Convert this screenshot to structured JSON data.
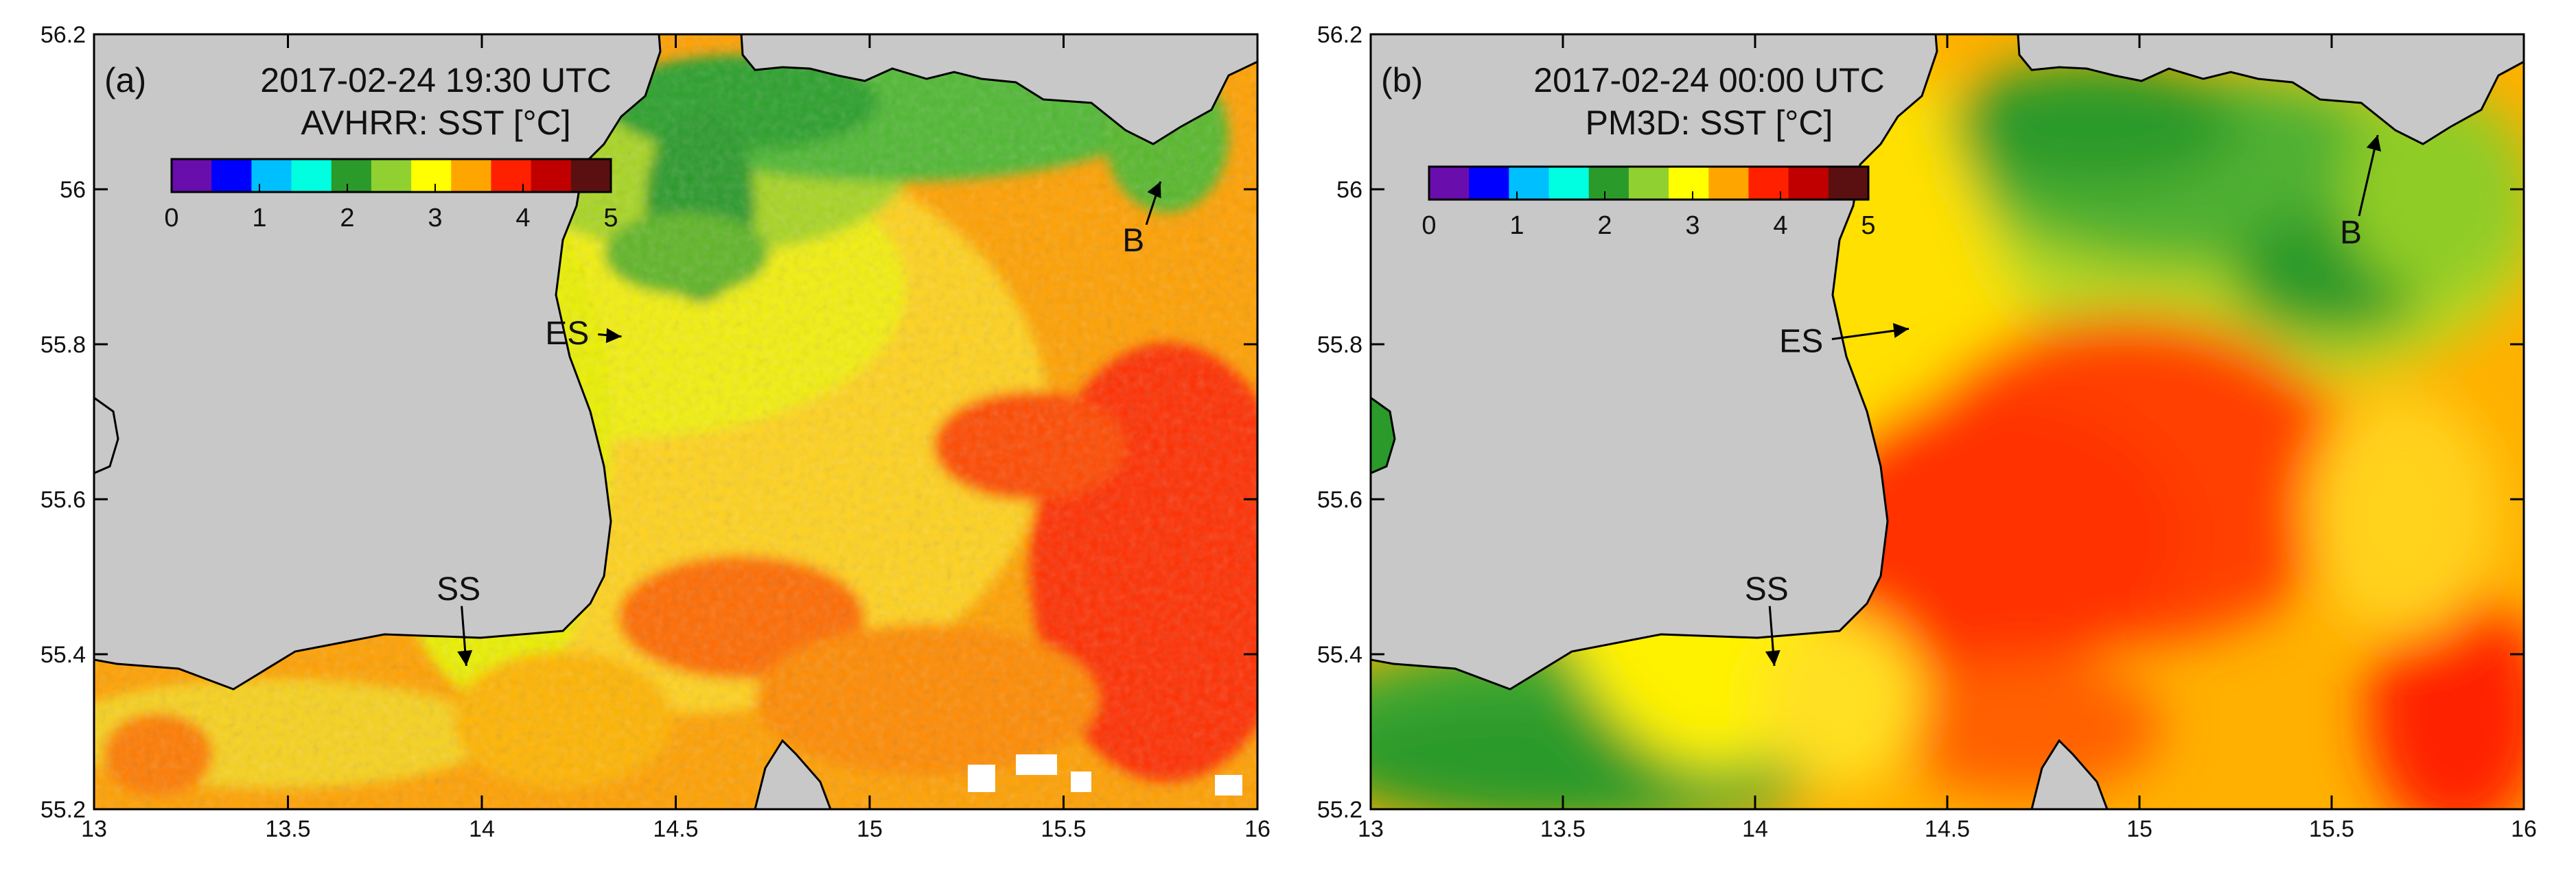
{
  "axes": {
    "x_ticks": [
      13,
      13.5,
      14,
      14.5,
      15,
      15.5,
      16
    ],
    "x_tick_labels": [
      "13",
      "13.5",
      "14",
      "14.5",
      "15",
      "15.5",
      "16"
    ],
    "y_ticks": [
      55.2,
      55.4,
      55.6,
      55.8,
      56,
      56.2
    ],
    "y_tick_labels": [
      "55.2",
      "55.4",
      "55.6",
      "55.8",
      "56",
      "56.2"
    ],
    "xlim": [
      13,
      16
    ],
    "ylim": [
      55.2,
      56.2
    ]
  },
  "colorbar": {
    "ticks": [
      "0",
      "1",
      "2",
      "3",
      "4",
      "5"
    ],
    "range": [
      0,
      5
    ],
    "colors": [
      "#6a0dad",
      "#0000ff",
      "#00bfff",
      "#00ffe0",
      "#2a9a2a",
      "#90d030",
      "#ffff00",
      "#ffa500",
      "#ff2000",
      "#c00000",
      "#5a1010"
    ]
  },
  "colors": {
    "land": "#c8c8c8",
    "coast": "#000000",
    "nodata": "#ffffff"
  },
  "panels": [
    {
      "id": "a",
      "label": "(a)",
      "datetime": "2017-02-24 19:30 UTC",
      "source": "AVHRR: SST [°C]",
      "markers": [
        {
          "text": "ES",
          "lon": 14.22,
          "lat": 55.8,
          "arrow_to": [
            14.36,
            55.81
          ]
        },
        {
          "text": "SS",
          "lon": 13.94,
          "lat": 55.47,
          "arrow_to": [
            13.96,
            55.385
          ]
        },
        {
          "text": "B",
          "lon": 15.68,
          "lat": 55.92,
          "arrow_to": [
            15.75,
            56.01
          ]
        }
      ]
    },
    {
      "id": "b",
      "label": "(b)",
      "datetime": "2017-02-24 00:00 UTC",
      "source": "PM3D: SST [°C]",
      "markers": [
        {
          "text": "ES",
          "lon": 14.12,
          "lat": 55.79,
          "arrow_to": [
            14.4,
            55.82
          ]
        },
        {
          "text": "SS",
          "lon": 14.03,
          "lat": 55.47,
          "arrow_to": [
            14.05,
            55.385
          ]
        },
        {
          "text": "B",
          "lon": 15.55,
          "lat": 55.93,
          "arrow_to": [
            15.62,
            56.07
          ]
        }
      ]
    }
  ]
}
